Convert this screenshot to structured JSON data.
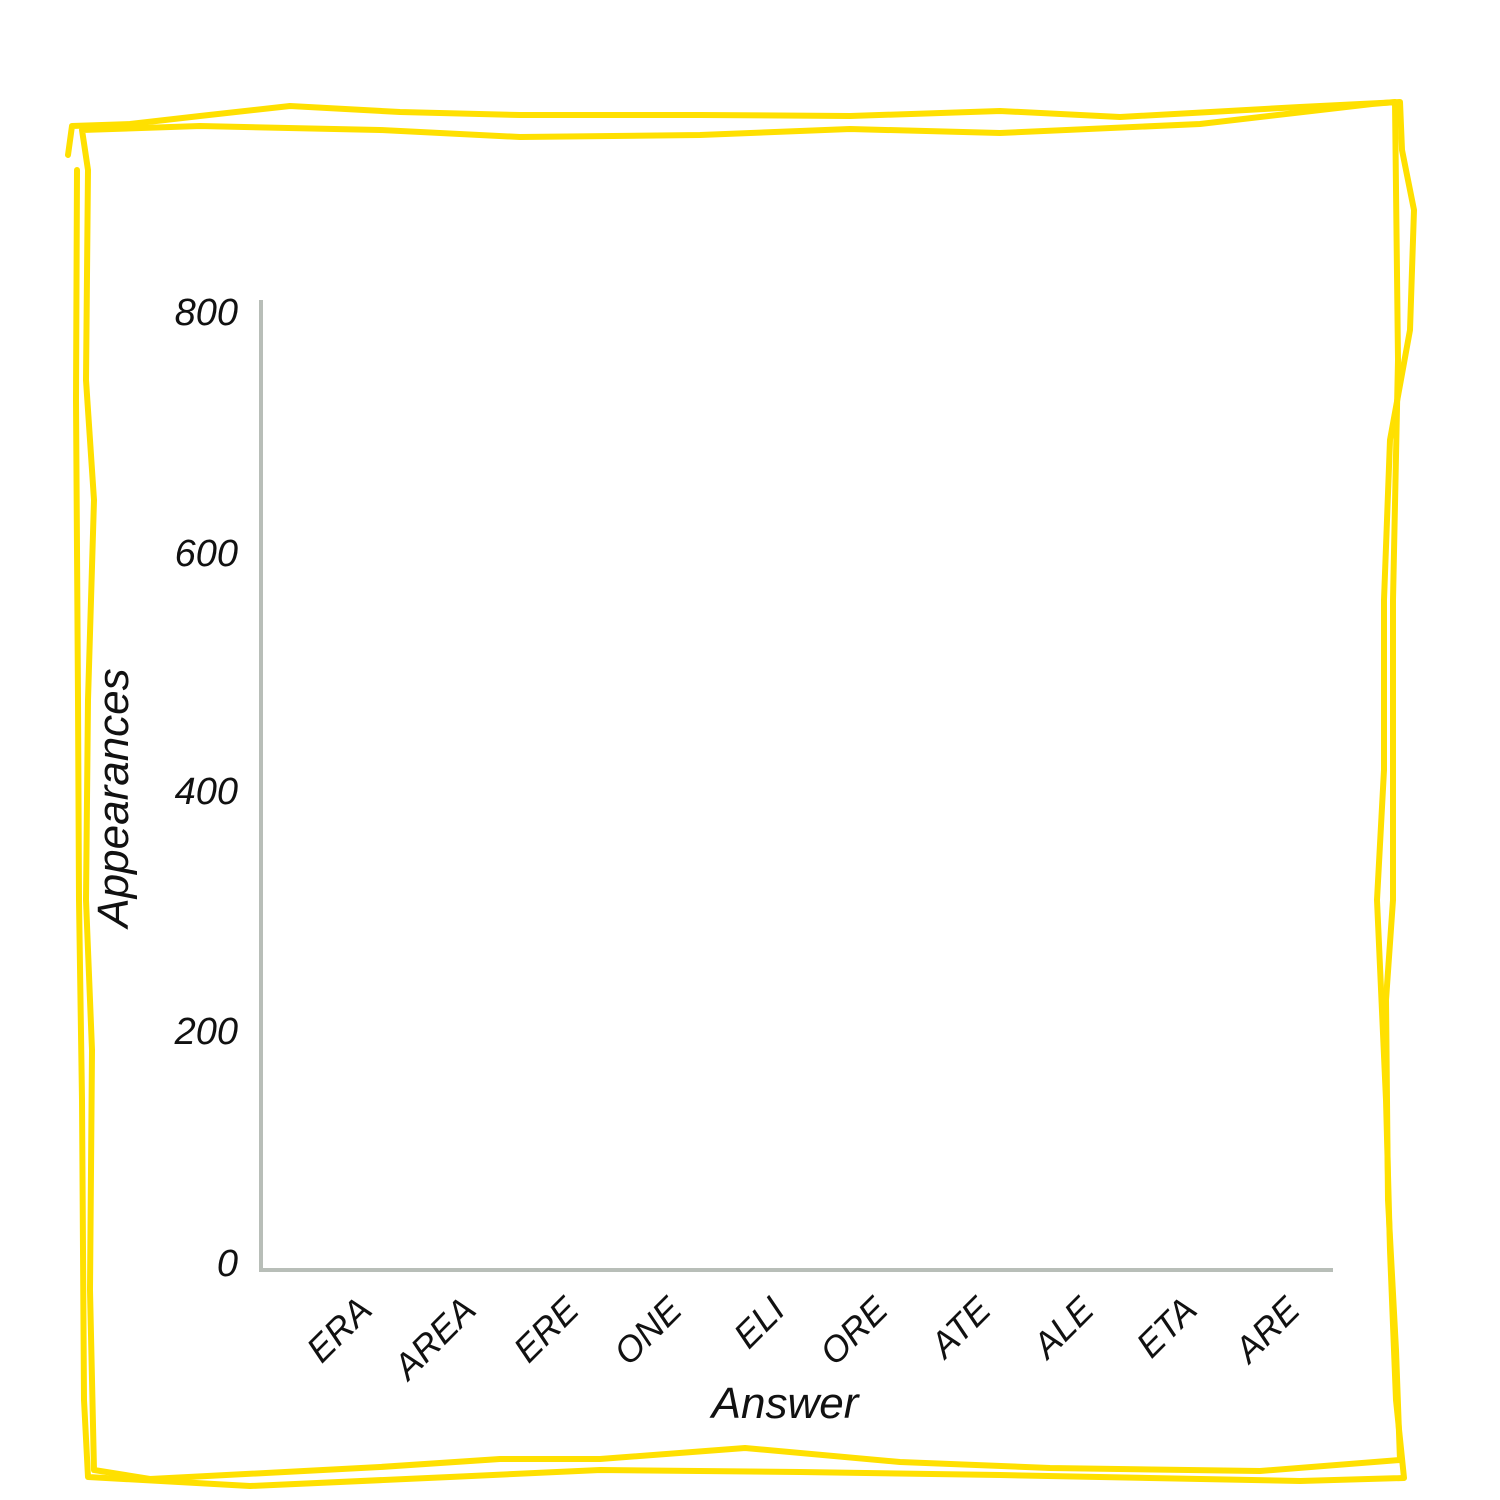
{
  "chart_data": {
    "type": "bar",
    "categories": [
      "ERA",
      "AREA",
      "ERE",
      "ONE",
      "ELI",
      "ORE",
      "ATE",
      "ALE",
      "ETA",
      "ARE"
    ],
    "values": [
      0,
      0,
      0,
      0,
      0,
      0,
      0,
      0,
      0,
      0
    ],
    "xlabel": "Answer",
    "ylabel": "Appearances",
    "yticks": [
      "0",
      "200",
      "400",
      "600",
      "800"
    ],
    "ylim": [
      0,
      800
    ],
    "grid": false,
    "colors": {
      "frame": "#FFE000",
      "axis": "#B8BEB8",
      "text": "#111111"
    }
  }
}
